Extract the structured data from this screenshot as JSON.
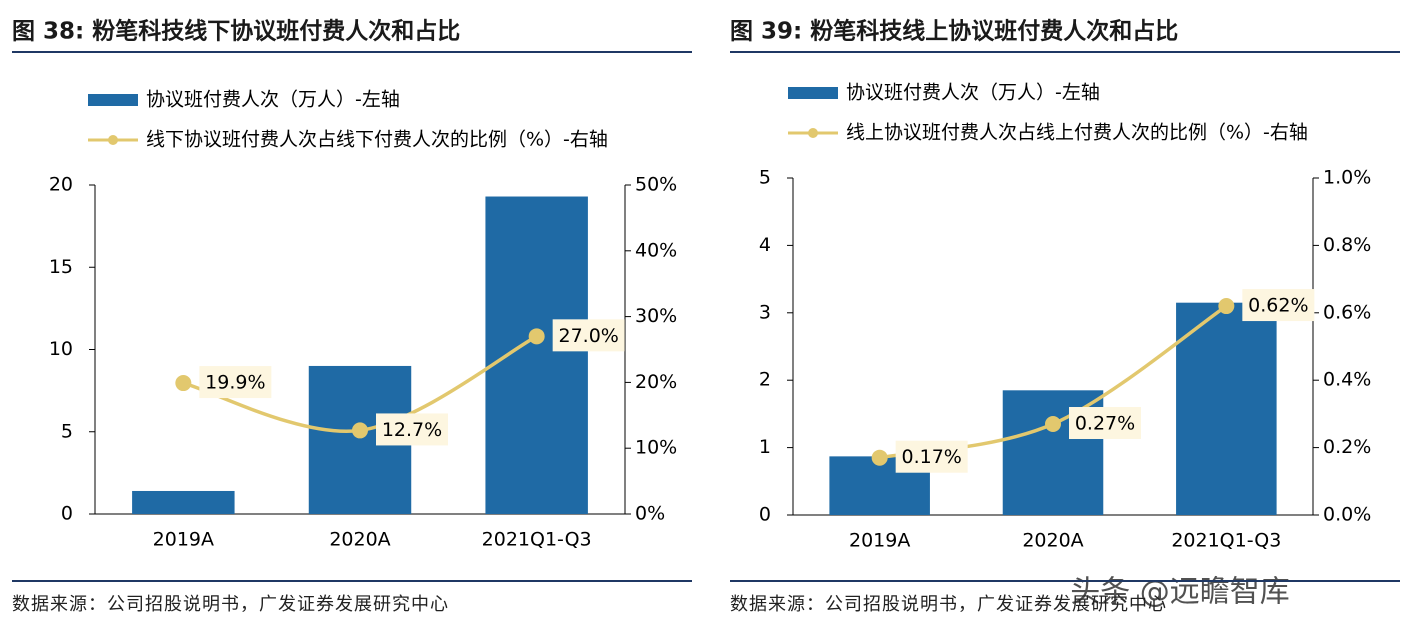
{
  "chart_data": [
    {
      "type": "bar",
      "title": "图 38: 粉笔科技线下协议班付费人次和占比",
      "source": "数据来源：公司招股说明书，广发证券发展研究中心",
      "categories": [
        "2019A",
        "2020A",
        "2021Q1-Q3"
      ],
      "series": [
        {
          "name": "协议班付费人次（万人）-左轴",
          "type": "bar",
          "color": "#1f6aa5",
          "values": [
            1.4,
            9.0,
            19.3
          ]
        },
        {
          "name": "线下协议班付费人次占线下付费人次的比例（%）-右轴",
          "type": "line",
          "axis": "y2",
          "color": "#e2c86e",
          "values": [
            19.9,
            12.7,
            27.0
          ],
          "value_labels": [
            "19.9%",
            "12.7%",
            "27.0%"
          ]
        }
      ],
      "ylim": [
        0,
        20
      ],
      "yticks": [
        0,
        5,
        10,
        15,
        20
      ],
      "y2lim": [
        0,
        50
      ],
      "y2ticks": [
        {
          "value": 0,
          "label": "0%"
        },
        {
          "value": 10,
          "label": "10%"
        },
        {
          "value": 20,
          "label": "20%"
        },
        {
          "value": 30,
          "label": "30%"
        },
        {
          "value": 40,
          "label": "40%"
        },
        {
          "value": 50,
          "label": "50%"
        }
      ]
    },
    {
      "type": "bar",
      "title": "图 39: 粉笔科技线上协议班付费人次和占比",
      "source": "数据来源：公司招股说明书，广发证券发展研究中心",
      "categories": [
        "2019A",
        "2020A",
        "2021Q1-Q3"
      ],
      "series": [
        {
          "name": "协议班付费人次（万人）-左轴",
          "type": "bar",
          "color": "#1f6aa5",
          "values": [
            0.87,
            1.85,
            3.15
          ]
        },
        {
          "name": "线上协议班付费人次占线上付费人次的比例（%）-右轴",
          "type": "line",
          "axis": "y2",
          "color": "#e2c86e",
          "values": [
            0.17,
            0.27,
            0.62
          ],
          "value_labels": [
            "0.17%",
            "0.27%",
            "0.62%"
          ]
        }
      ],
      "ylim": [
        0,
        5
      ],
      "yticks": [
        0,
        1,
        2,
        3,
        4,
        5
      ],
      "y2lim": [
        0,
        1.0
      ],
      "y2ticks": [
        {
          "value": 0,
          "label": "0.0%"
        },
        {
          "value": 0.2,
          "label": "0.2%"
        },
        {
          "value": 0.4,
          "label": "0.4%"
        },
        {
          "value": 0.6,
          "label": "0.6%"
        },
        {
          "value": 0.8,
          "label": "0.8%"
        },
        {
          "value": 1.0,
          "label": "1.0%"
        }
      ]
    }
  ],
  "watermark": "头条 @远瞻智库"
}
